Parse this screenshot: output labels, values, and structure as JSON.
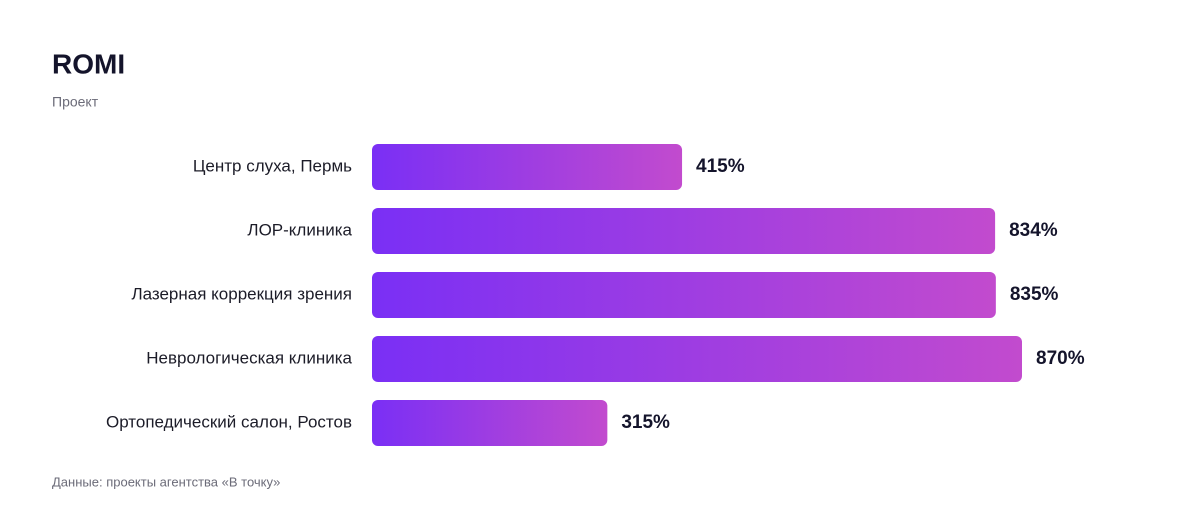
{
  "chart_data": {
    "type": "hbar",
    "title": "ROMI",
    "subtitle": "Проект",
    "categories": [
      "Центр слуха, Пермь",
      "ЛОР-клиника",
      "Лазерная коррекция зрения",
      "Неврологическая клиника",
      "Ортопедический салон, Ростов"
    ],
    "values": [
      415,
      834,
      835,
      870,
      315
    ],
    "value_labels": [
      "415%",
      "834%",
      "835%",
      "870%",
      "315%"
    ],
    "gradient": [
      "#7a2ff5",
      "#c24bce"
    ],
    "source": "Данные: проекты агентства «В точку»"
  }
}
